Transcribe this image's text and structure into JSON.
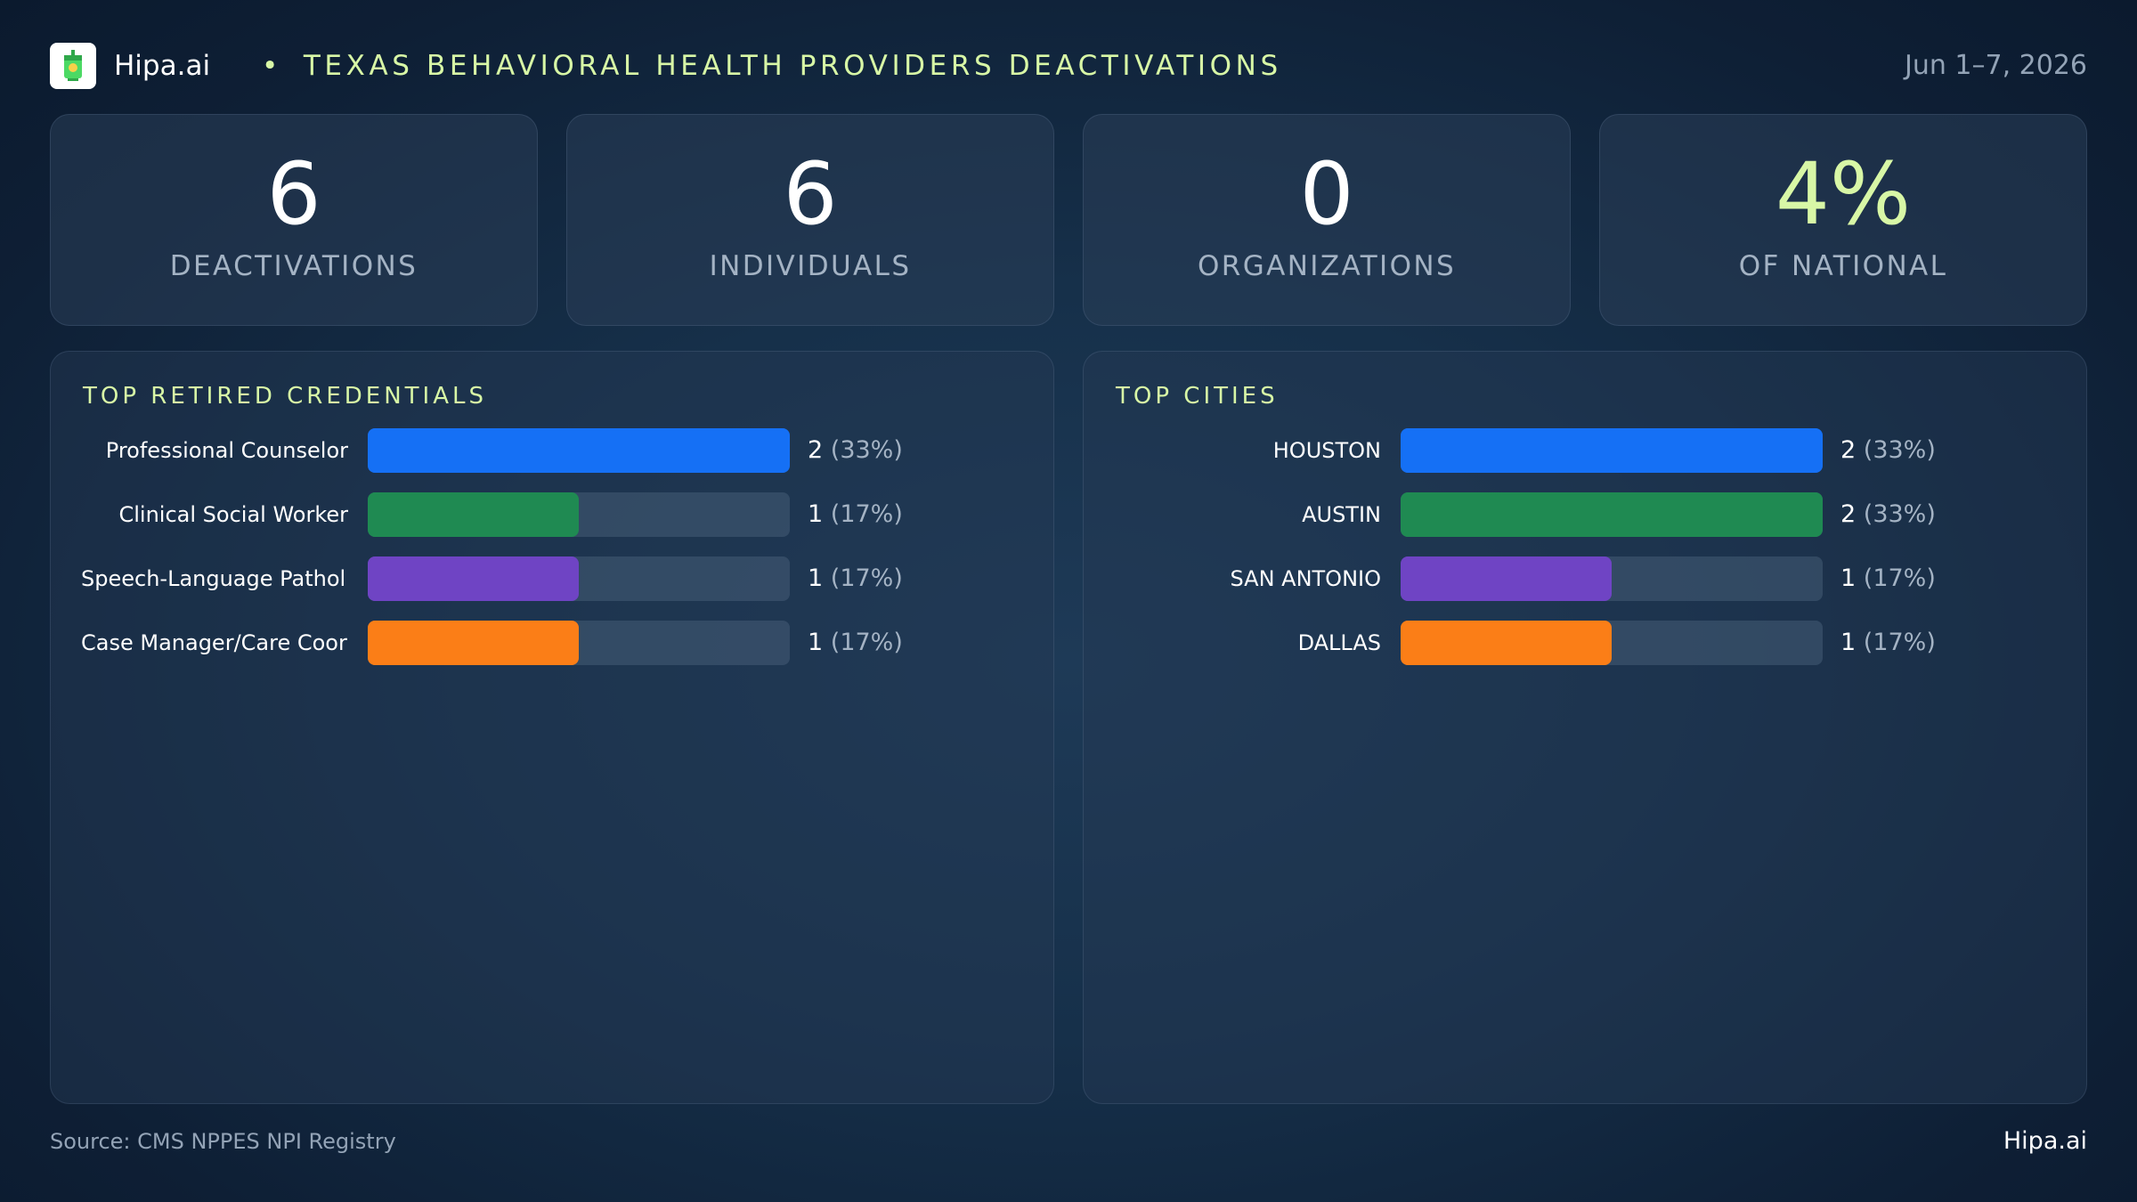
{
  "header": {
    "brand": "Hipa.ai",
    "separator": "•",
    "title": "TEXAS BEHAVIORAL HEALTH PROVIDERS DEACTIVATIONS",
    "date_range": "Jun 1–7, 2026"
  },
  "stats": [
    {
      "value": "6",
      "label": "DEACTIVATIONS"
    },
    {
      "value": "6",
      "label": "INDIVIDUALS"
    },
    {
      "value": "0",
      "label": "ORGANIZATIONS"
    },
    {
      "value": "4%",
      "label": "OF NATIONAL"
    }
  ],
  "colors": {
    "accent": "#d8f7a6",
    "series": [
      "#1570f5",
      "#1f8a52",
      "#6f44c4",
      "#fb7e17"
    ]
  },
  "chart_data": [
    {
      "type": "bar",
      "orientation": "horizontal",
      "title": "TOP RETIRED CREDENTIALS",
      "categories": [
        "Professional Counselor",
        "Clinical Social Worker",
        "Speech-Language Pathol…",
        "Case Manager/Care Coor…"
      ],
      "values": [
        2,
        1,
        1,
        1
      ],
      "value_labels": [
        "2",
        "1",
        "1",
        "1"
      ],
      "percent_labels": [
        "(33%)",
        "(17%)",
        "(17%)",
        "(17%)"
      ],
      "xlim": [
        0,
        2
      ]
    },
    {
      "type": "bar",
      "orientation": "horizontal",
      "title": "TOP CITIES",
      "categories": [
        "HOUSTON",
        "AUSTIN",
        "SAN ANTONIO",
        "DALLAS"
      ],
      "values": [
        2,
        2,
        1,
        1
      ],
      "value_labels": [
        "2",
        "2",
        "1",
        "1"
      ],
      "percent_labels": [
        "(33%)",
        "(33%)",
        "(17%)",
        "(17%)"
      ],
      "xlim": [
        0,
        2
      ]
    }
  ],
  "footer": {
    "source": "Source: CMS NPPES NPI Registry",
    "brand": "Hipa.ai"
  }
}
